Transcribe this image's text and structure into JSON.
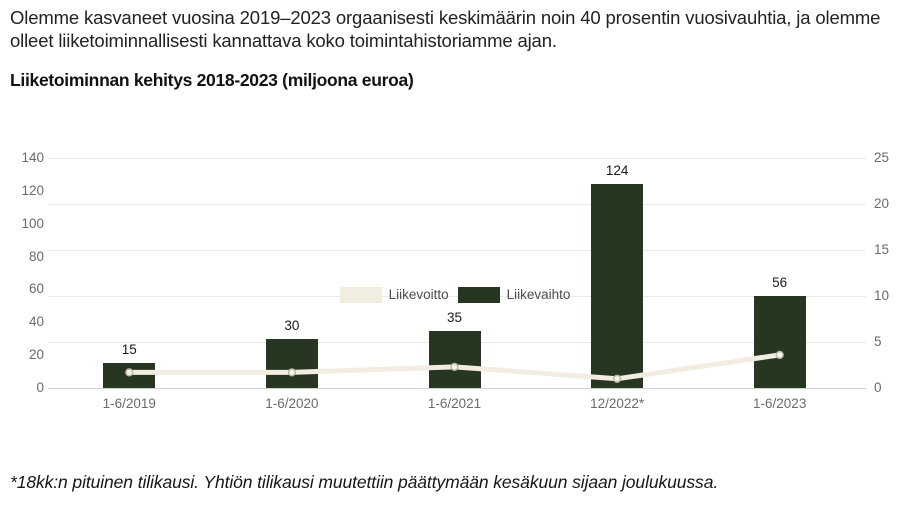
{
  "intro": {
    "text": "Olemme kasvaneet vuosina 2019–2023 orgaanisesti keskimäärin noin 40 prosentin vuosivauhtia, ja olemme olleet liiketoiminnallisesti kannattava koko toimintahistoriamme ajan."
  },
  "chart_data": {
    "type": "bar",
    "title": "Liiketoiminnan kehitys 2018-2023 (miljoona euroa)",
    "categories": [
      "1-6/2019",
      "1-6/2020",
      "1-6/2021",
      "12/2022*",
      "1-6/2023"
    ],
    "series": [
      {
        "name": "Liikevaihto",
        "kind": "bar",
        "axis": "left",
        "color": "#273621",
        "values": [
          15,
          30,
          35,
          124,
          56
        ]
      },
      {
        "name": "Liikevoitto",
        "kind": "line",
        "axis": "right",
        "color": "#f1ede0",
        "values": [
          1.7,
          1.7,
          2.3,
          1.0,
          3.6
        ]
      }
    ],
    "bar_labels": [
      "15",
      "30",
      "35",
      "124",
      "56"
    ],
    "left_axis": {
      "ticks": [
        0,
        20,
        40,
        60,
        80,
        100,
        120,
        140
      ],
      "max": 140
    },
    "right_axis": {
      "ticks": [
        0,
        5,
        10,
        15,
        20,
        25
      ],
      "max": 25
    },
    "grid": "horizontal",
    "legend_position": "bottom",
    "legend": [
      {
        "label": "Liikevoitto",
        "color": "#f1ede0"
      },
      {
        "label": "Liikevaihto",
        "color": "#273621"
      }
    ],
    "marker": {
      "fill": "#f7f4ea",
      "stroke": "#bcb7a6"
    }
  },
  "footnote": {
    "text": "*18kk:n pituinen tilikausi. Yhtiön tilikausi muutettiin päättymään kesäkuun sijaan joulukuussa."
  }
}
